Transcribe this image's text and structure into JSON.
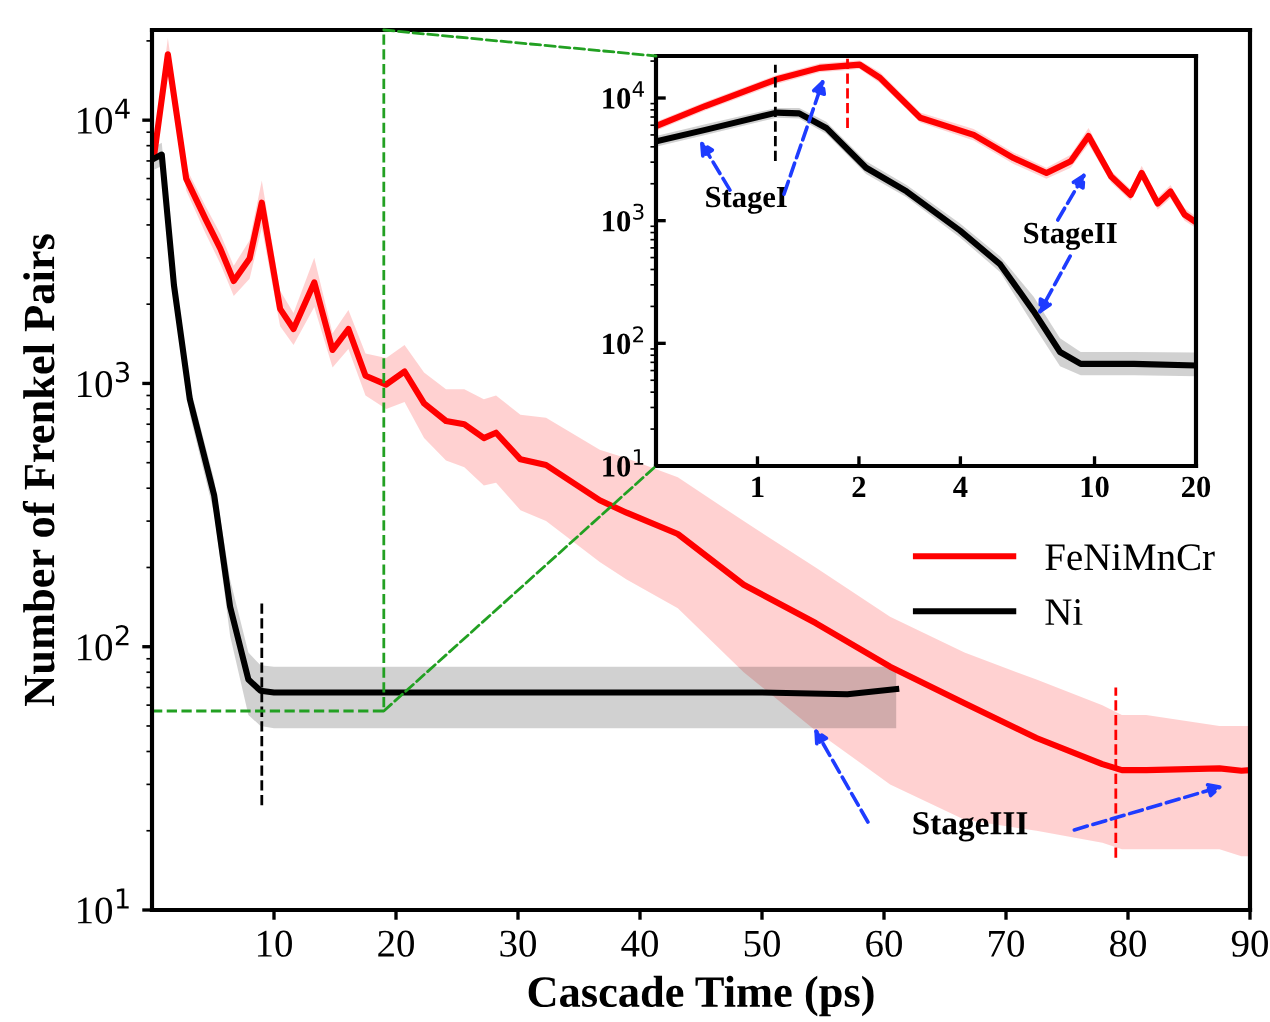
{
  "chart_data": [
    {
      "type": "line",
      "xlabel": "Cascade Time (ps)",
      "ylabel": "Number of Frenkel Pairs",
      "log": "y",
      "xlim": [
        0,
        90
      ],
      "xticks": [
        10,
        20,
        30,
        40,
        50,
        60,
        70,
        80,
        90
      ],
      "ylim": [
        10,
        22000
      ],
      "yticks": [
        {
          "value": 10,
          "label": "10$^{1}$"
        },
        {
          "value": 100,
          "label": "10$^{2}$"
        },
        {
          "value": 1000,
          "label": "10$^{3}$"
        },
        {
          "value": 10000,
          "label": "10$^{4}$"
        }
      ],
      "legend": "right",
      "grid": false,
      "series": [
        {
          "name": "FeNiMnCr",
          "color": "#ff0000",
          "x": [
            0.2,
            1.3,
            2.8,
            4.4,
            5.6,
            6.7,
            8.0,
            9.0,
            10.5,
            11.6,
            13.3,
            14.8,
            16.1,
            17.5,
            19.2,
            20.7,
            22.3,
            24.1,
            25.6,
            27.2,
            28.2,
            30.2,
            32.3,
            36.7,
            38.9,
            43.1,
            48.5,
            54.4,
            60.5,
            66.6,
            72.5,
            77.9,
            79.5,
            81.5,
            87.5,
            89.3,
            90
          ],
          "values": [
            7500,
            17800,
            6000,
            4200,
            3250,
            2450,
            2980,
            4860,
            1920,
            1610,
            2420,
            1340,
            1610,
            1070,
            990,
            1110,
            840,
            720,
            700,
            620,
            650,
            515,
            490,
            360,
            323,
            268,
            172,
            123,
            84,
            61,
            45,
            35.8,
            34,
            34,
            34.5,
            33.8,
            34
          ],
          "lower": [
            6800,
            15500,
            5400,
            3700,
            2850,
            2150,
            2500,
            3900,
            1650,
            1400,
            1950,
            1150,
            1350,
            900,
            800,
            850,
            620,
            510,
            480,
            410,
            420,
            330,
            300,
            210,
            180,
            140,
            80,
            48,
            30,
            22,
            20,
            18,
            17,
            17,
            17,
            16,
            16
          ],
          "upper": [
            8200,
            20500,
            6600,
            4700,
            3700,
            2800,
            3500,
            5900,
            2250,
            1850,
            3000,
            1550,
            1900,
            1300,
            1250,
            1400,
            1100,
            950,
            950,
            870,
            900,
            760,
            740,
            560,
            520,
            440,
            300,
            200,
            130,
            95,
            75,
            60,
            55,
            55,
            50,
            50,
            50
          ]
        },
        {
          "name": "Ni",
          "color": "#000000",
          "x": [
            0.2,
            0.8,
            1.8,
            3.1,
            5.1,
            6.4,
            7.9,
            8.9,
            10,
            20,
            30,
            40,
            50,
            57,
            61
          ],
          "values": [
            7160,
            7400,
            2360,
            870,
            375,
            142,
            75,
            68,
            67,
            67,
            67,
            67,
            67,
            66,
            69
          ],
          "lower": [
            6500,
            6700,
            2100,
            760,
            320,
            110,
            55,
            50,
            49,
            49,
            49,
            49,
            49,
            49,
            49
          ],
          "upper": [
            7900,
            8200,
            2650,
            980,
            430,
            180,
            95,
            85,
            84,
            84,
            84,
            84,
            84,
            84,
            84
          ]
        },
        {
          "color": "#000000",
          "line_style": "dashed",
          "x": [
            9,
            9
          ],
          "values": [
            25,
            150
          ]
        },
        {
          "color": "#ff0000",
          "line_style": "dashed",
          "x": [
            79,
            79
          ],
          "values": [
            15.8,
            70
          ]
        },
        {
          "color": "#22a022",
          "line_style": "dashed",
          "x": [
            0,
            19,
            19
          ],
          "values": [
            57,
            57,
            22000
          ]
        }
      ],
      "annotations": [
        "StageIII"
      ]
    },
    {
      "type": "line",
      "log": "xy",
      "xlim": [
        0.5,
        20
      ],
      "xticks": [
        1,
        2,
        4,
        10,
        20
      ],
      "ylim": [
        10,
        22000
      ],
      "yticks": [
        {
          "value": 10,
          "label": "10$^{1}$"
        },
        {
          "value": 100,
          "label": "10$^{2}$"
        },
        {
          "value": 1000,
          "label": "10$^{3}$"
        },
        {
          "value": 10000,
          "label": "10$^{4}$"
        }
      ],
      "grid": false,
      "series": [
        {
          "color": "#ff0000",
          "x": [
            0.5,
            0.7,
            1.14,
            1.53,
            2.01,
            2.31,
            3.04,
            4.38,
            5.75,
            7.2,
            8.5,
            9.6,
            11.2,
            12.8,
            13.8,
            15.4,
            16.8,
            18.5,
            20
          ],
          "values": [
            5900,
            8600,
            14200,
            17600,
            18700,
            14600,
            6900,
            5000,
            3240,
            2450,
            3050,
            4900,
            2290,
            1620,
            2450,
            1380,
            1730,
            1120,
            970
          ],
          "lower": [
            5400,
            7900,
            13000,
            16200,
            17200,
            13200,
            6300,
            4500,
            2900,
            2200,
            2700,
            4200,
            2050,
            1450,
            2150,
            1230,
            1520,
            1000,
            870
          ],
          "upper": [
            6400,
            9300,
            15400,
            19100,
            20300,
            16200,
            7600,
            5600,
            3600,
            2700,
            3450,
            5700,
            2550,
            1800,
            2800,
            1550,
            1950,
            1260,
            1080
          ]
        },
        {
          "color": "#000000",
          "x": [
            0.5,
            0.7,
            1.14,
            1.33,
            1.6,
            2.1,
            2.77,
            3.99,
            5.25,
            6.6,
            7.9,
            9.1,
            13.1,
            20
          ],
          "values": [
            4430,
            5500,
            7600,
            7500,
            5700,
            2700,
            1730,
            830,
            440,
            182,
            85,
            68,
            68,
            66
          ],
          "lower": [
            4000,
            5000,
            6900,
            6800,
            5100,
            2400,
            1550,
            730,
            380,
            140,
            65,
            55,
            55,
            54
          ],
          "upper": [
            4900,
            6100,
            8300,
            8300,
            6400,
            3050,
            1950,
            950,
            510,
            240,
            110,
            85,
            85,
            84
          ]
        },
        {
          "color": "#000000",
          "line_style": "dashed",
          "x": [
            1.13,
            1.13
          ],
          "values": [
            3060,
            18700
          ]
        },
        {
          "color": "#ff0000",
          "line_style": "dashed",
          "x": [
            1.85,
            1.85
          ],
          "values": [
            5700,
            22000
          ]
        }
      ],
      "annotations": [
        "StageI",
        {
          "text": "StageII",
          "x": 6.8,
          "y": 170
        }
      ]
    }
  ]
}
